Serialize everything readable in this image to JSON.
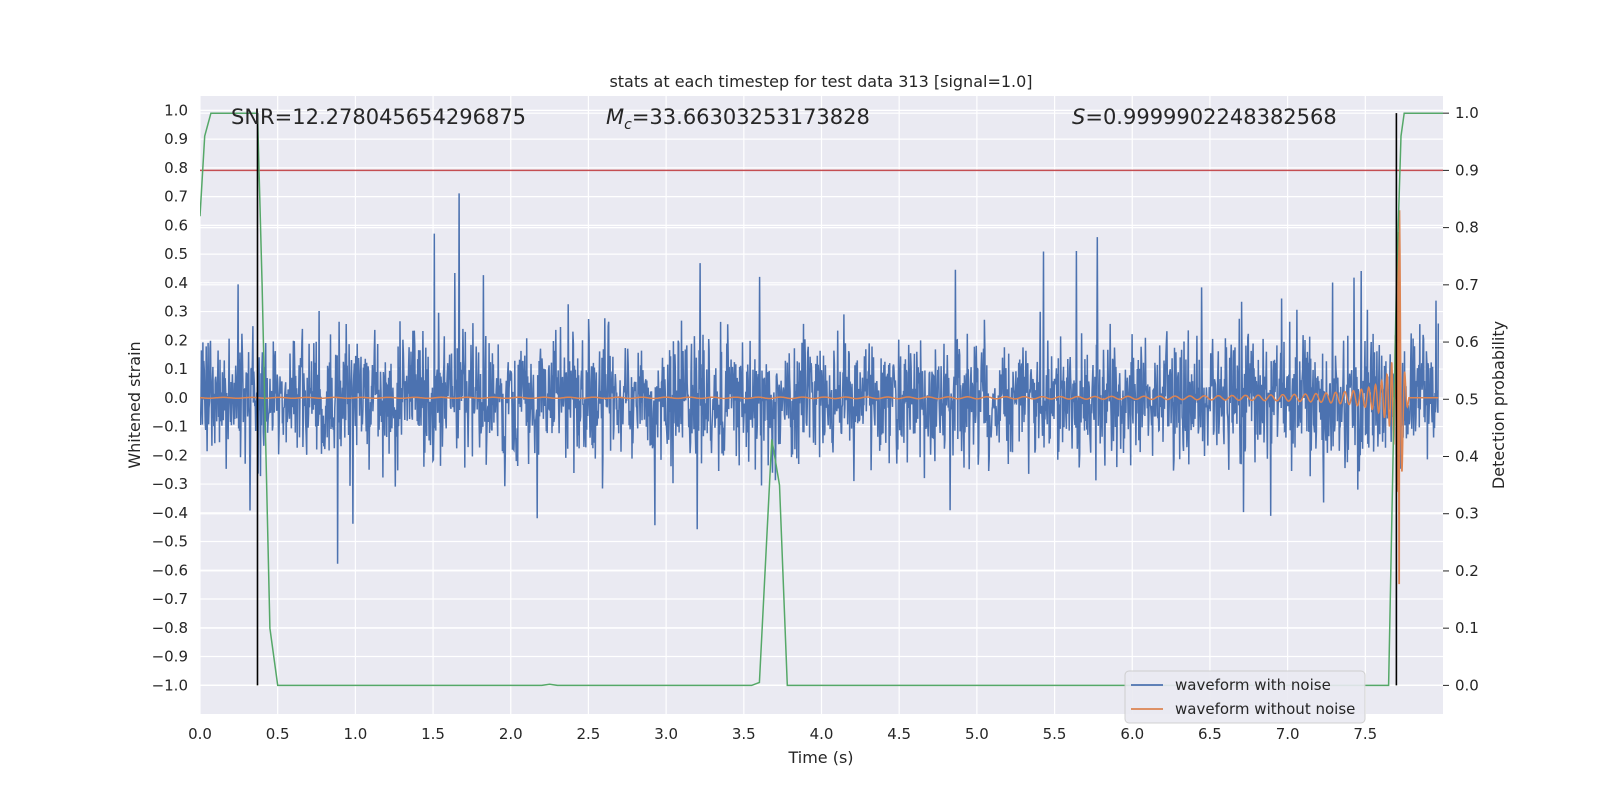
{
  "chart_data": {
    "type": "line",
    "title": "stats at each timestep for test data 313 [signal=1.0]",
    "xlabel": "Time (s)",
    "ylabel": "Whitened strain",
    "ylabel_right": "Detection probability",
    "xlim": [
      0,
      8.0
    ],
    "ylim": [
      -1.1,
      1.05
    ],
    "ylim_right": [
      -0.05,
      1.03
    ],
    "x_ticks": [
      "0.0",
      "0.5",
      "1.0",
      "1.5",
      "2.0",
      "2.5",
      "3.0",
      "3.5",
      "4.0",
      "4.5",
      "5.0",
      "5.5",
      "6.0",
      "6.5",
      "7.0",
      "7.5"
    ],
    "y_ticks": [
      "−1.0",
      "−0.9",
      "−0.8",
      "−0.7",
      "−0.6",
      "−0.5",
      "−0.4",
      "−0.3",
      "−0.2",
      "−0.1",
      "0.0",
      "0.1",
      "0.2",
      "0.3",
      "0.4",
      "0.5",
      "0.6",
      "0.7",
      "0.8",
      "0.9",
      "1.0"
    ],
    "y_ticks_right": [
      "0.0",
      "0.1",
      "0.2",
      "0.3",
      "0.4",
      "0.5",
      "0.6",
      "0.7",
      "0.8",
      "0.9",
      "1.0"
    ],
    "annotations": {
      "snr": "SNR=12.278045654296875",
      "mc_symbol": "M",
      "mc_sub": "c",
      "mc_value": "=33.66303253173828",
      "s_symbol": "S",
      "s_value": "=0.9999902248382568"
    },
    "threshold": {
      "value": 0.9,
      "axis": "right",
      "color": "#c44e52"
    },
    "vlines": [
      0.37,
      7.7
    ],
    "series": [
      {
        "name": "waveform with noise",
        "color": "#4c72b0",
        "axis": "left",
        "description": "whitened strain noise, amplitude ~0.3-0.8, duration 0-8 s"
      },
      {
        "name": "waveform without noise",
        "color": "#dd8452",
        "axis": "left",
        "description": "chirp signal, merger near 7.72 s"
      },
      {
        "name": "detection probability",
        "color": "#55a868",
        "axis": "right",
        "x": [
          0.0,
          0.03,
          0.07,
          0.12,
          0.2,
          0.3,
          0.37,
          0.4,
          0.45,
          0.5,
          2.2,
          2.25,
          2.3,
          3.55,
          3.6,
          3.68,
          3.73,
          3.78,
          7.65,
          7.7,
          7.73,
          7.75,
          8.0
        ],
        "values": [
          0.82,
          0.96,
          1.0,
          1.0,
          1.0,
          1.0,
          1.0,
          0.7,
          0.1,
          0.0,
          0.0,
          0.002,
          0.0,
          0.0,
          0.005,
          0.43,
          0.35,
          0.0,
          0.0,
          0.7,
          0.96,
          1.0,
          1.0
        ]
      }
    ],
    "legend": {
      "location": "bottom-right",
      "entries": [
        "waveform with noise",
        "waveform without noise"
      ]
    },
    "grid": true
  }
}
